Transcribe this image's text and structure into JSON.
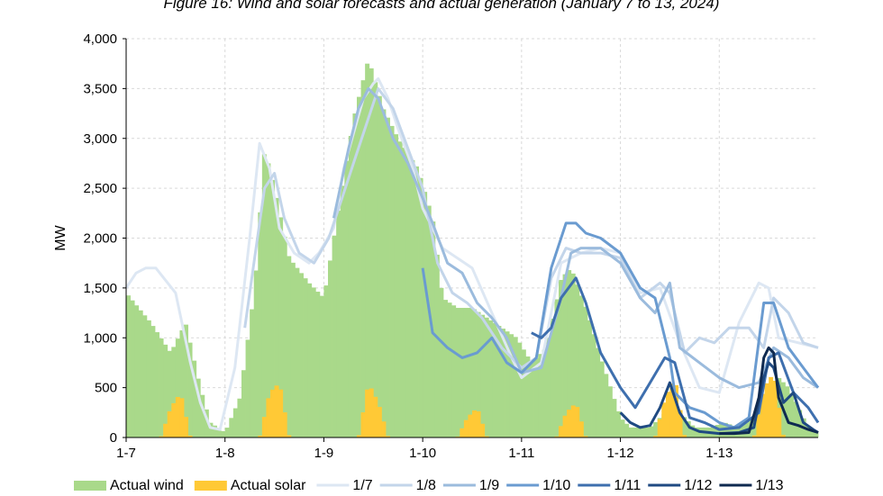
{
  "chart_data": {
    "type": "area",
    "title": "Figure 16: Wind and solar forecasts and actual generation (January 7 to 13, 2024)",
    "ylabel": "MW",
    "xlabel": "",
    "ylim": [
      0,
      4000
    ],
    "yticks": [
      "0",
      "500",
      "1,000",
      "1,500",
      "2,000",
      "2,500",
      "3,000",
      "3,500",
      "4,000"
    ],
    "xlim": [
      0,
      7
    ],
    "xticks": [
      "1-7",
      "1-8",
      "1-9",
      "1-10",
      "1-11",
      "1-12",
      "1-13"
    ],
    "grid": true,
    "legend_position": "bottom",
    "bar_series": [
      {
        "name": "Actual wind",
        "color": "#a9d98a",
        "x": [
          0,
          0.25,
          0.45,
          0.6,
          0.75,
          0.85,
          1.0,
          1.15,
          1.3,
          1.4,
          1.5,
          1.65,
          1.85,
          2.0,
          2.15,
          2.3,
          2.45,
          2.6,
          2.75,
          2.95,
          3.1,
          3.2,
          3.35,
          3.5,
          3.65,
          3.8,
          3.95,
          4.1,
          4.25,
          4.4,
          4.5,
          4.65,
          4.8,
          5.0,
          5.1,
          5.3,
          5.5,
          5.6,
          5.75,
          5.9,
          6.05,
          6.2,
          6.35,
          6.45,
          6.5,
          6.6,
          6.7,
          6.8,
          6.9,
          7.0
        ],
        "values": [
          1450,
          1150,
          850,
          1150,
          500,
          150,
          50,
          400,
          1500,
          2900,
          2500,
          1800,
          1550,
          1400,
          2300,
          3200,
          3800,
          3300,
          3000,
          2700,
          2200,
          1400,
          1300,
          1300,
          1200,
          1100,
          1000,
          750,
          900,
          1600,
          1700,
          1300,
          800,
          200,
          100,
          100,
          300,
          250,
          100,
          100,
          150,
          100,
          200,
          300,
          400,
          600,
          500,
          300,
          100,
          50
        ]
      },
      {
        "name": "Actual solar",
        "color": "#ffc936",
        "x": [
          0.35,
          0.45,
          0.55,
          0.65,
          1.35,
          1.45,
          1.55,
          1.65,
          2.35,
          2.45,
          2.55,
          2.65,
          3.35,
          3.45,
          3.55,
          3.65,
          4.35,
          4.45,
          4.55,
          4.65,
          5.35,
          5.45,
          5.55,
          5.65,
          6.35,
          6.45,
          6.55,
          6.65
        ],
        "values": [
          0,
          300,
          450,
          0,
          0,
          450,
          550,
          0,
          0,
          550,
          350,
          0,
          0,
          200,
          300,
          0,
          0,
          250,
          350,
          0,
          0,
          400,
          600,
          0,
          0,
          500,
          650,
          0
        ]
      }
    ],
    "series": [
      {
        "name": "1/7",
        "color": "#dde7f3",
        "x": [
          0,
          0.1,
          0.2,
          0.3,
          0.5,
          0.65,
          0.75,
          0.85,
          0.95,
          1.1,
          1.25,
          1.35,
          1.45,
          1.55,
          1.7,
          1.85,
          1.95,
          2.1,
          2.2,
          2.3,
          2.4,
          2.5,
          2.55,
          2.65,
          2.75,
          2.9,
          3.0,
          3.2,
          3.5,
          3.7,
          3.9,
          4.0,
          4.2,
          4.4,
          4.6,
          4.8,
          5.0,
          5.2,
          5.4,
          5.6,
          5.8,
          6.0,
          6.2,
          6.4,
          6.5,
          6.6,
          6.8,
          7.0
        ],
        "values": [
          1500,
          1650,
          1700,
          1700,
          1450,
          750,
          350,
          100,
          80,
          700,
          2000,
          2950,
          2700,
          2100,
          1850,
          1750,
          1850,
          2100,
          2700,
          3050,
          3400,
          3550,
          3600,
          3400,
          3100,
          2700,
          2300,
          1900,
          1700,
          1250,
          800,
          600,
          750,
          1750,
          1850,
          1900,
          1850,
          1450,
          1500,
          950,
          500,
          450,
          1150,
          1550,
          1500,
          1000,
          950,
          900
        ]
      },
      {
        "name": "1/8",
        "color": "#c3d5ea",
        "x": [
          1.2,
          1.3,
          1.4,
          1.5,
          1.6,
          1.75,
          1.9,
          2.05,
          2.2,
          2.3,
          2.45,
          2.55,
          2.7,
          2.85,
          3.0,
          3.15,
          3.3,
          3.45,
          3.6,
          3.8,
          4.0,
          4.15,
          4.3,
          4.45,
          4.6,
          4.8,
          5.0,
          5.2,
          5.4,
          5.5,
          5.65,
          5.8,
          5.95,
          6.1,
          6.3,
          6.45,
          6.55,
          6.7,
          6.85,
          7.0
        ],
        "values": [
          1100,
          1800,
          2500,
          2650,
          2200,
          1850,
          1750,
          2000,
          2450,
          2750,
          3200,
          3500,
          3300,
          2900,
          2500,
          1750,
          1450,
          1350,
          1200,
          900,
          700,
          800,
          1600,
          1900,
          1850,
          1850,
          1800,
          1400,
          1550,
          1450,
          850,
          1000,
          950,
          1100,
          1100,
          900,
          1400,
          1250,
          950,
          900
        ]
      },
      {
        "name": "1/9",
        "color": "#9bbbdd",
        "x": [
          2.1,
          2.25,
          2.35,
          2.45,
          2.55,
          2.7,
          2.85,
          3.0,
          3.1,
          3.25,
          3.4,
          3.55,
          3.7,
          3.85,
          4.0,
          4.2,
          4.4,
          4.5,
          4.6,
          4.8,
          5.0,
          5.2,
          5.35,
          5.5,
          5.6,
          5.8,
          6.0,
          6.2,
          6.4,
          6.55,
          6.7,
          6.85,
          7.0
        ],
        "values": [
          2200,
          2900,
          3300,
          3500,
          3400,
          3000,
          2750,
          2400,
          2150,
          1750,
          1650,
          1350,
          1200,
          1000,
          650,
          700,
          1400,
          1850,
          1900,
          1900,
          1750,
          1400,
          1250,
          1550,
          900,
          750,
          600,
          500,
          550,
          900,
          800,
          600,
          500
        ]
      },
      {
        "name": "1/10",
        "color": "#6a9bd0",
        "x": [
          3.0,
          3.1,
          3.25,
          3.4,
          3.55,
          3.7,
          3.85,
          4.0,
          4.15,
          4.3,
          4.45,
          4.55,
          4.65,
          4.8,
          5.0,
          5.2,
          5.35,
          5.5,
          5.55,
          5.7,
          5.85,
          6.0,
          6.15,
          6.3,
          6.45,
          6.55,
          6.7,
          6.85,
          7.0
        ],
        "values": [
          1700,
          1050,
          900,
          800,
          850,
          1000,
          750,
          650,
          800,
          1700,
          2150,
          2150,
          2050,
          2000,
          1850,
          1500,
          1400,
          800,
          450,
          300,
          250,
          150,
          100,
          200,
          1350,
          1350,
          900,
          700,
          500
        ]
      },
      {
        "name": "1/11",
        "color": "#3e6fae",
        "x": [
          4.1,
          4.2,
          4.3,
          4.4,
          4.55,
          4.65,
          4.8,
          5.0,
          5.15,
          5.3,
          5.45,
          5.55,
          5.7,
          5.85,
          6.0,
          6.2,
          6.4,
          6.5,
          6.6,
          6.75,
          6.9,
          7.0
        ],
        "values": [
          1050,
          1000,
          1100,
          1400,
          1600,
          1350,
          850,
          500,
          300,
          550,
          800,
          750,
          200,
          150,
          80,
          100,
          250,
          800,
          850,
          450,
          300,
          150
        ]
      },
      {
        "name": "1/12",
        "color": "#1f4a82",
        "x": [
          5.0,
          5.1,
          5.2,
          5.3,
          5.4,
          5.5,
          5.6,
          5.7,
          5.8,
          6.0,
          6.2,
          6.35,
          6.45,
          6.5,
          6.55,
          6.65,
          6.75,
          6.85,
          6.95,
          7.0
        ],
        "values": [
          250,
          150,
          100,
          120,
          300,
          550,
          250,
          100,
          60,
          40,
          50,
          100,
          600,
          750,
          700,
          350,
          450,
          150,
          80,
          50
        ]
      },
      {
        "name": "1/13",
        "color": "#0f2a50",
        "x": [
          6.0,
          6.15,
          6.3,
          6.4,
          6.45,
          6.5,
          6.55,
          6.6,
          6.7,
          6.8,
          6.9,
          7.0
        ],
        "values": [
          40,
          40,
          50,
          400,
          800,
          900,
          850,
          400,
          150,
          120,
          80,
          50
        ]
      }
    ]
  }
}
